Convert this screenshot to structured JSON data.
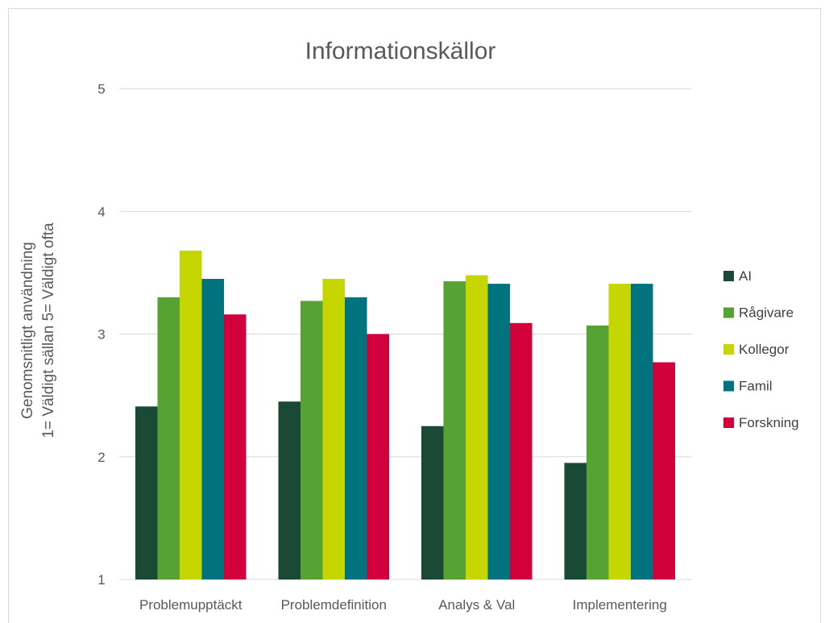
{
  "chart_data": {
    "type": "bar",
    "title": "Informationskällor",
    "ylabel_lines": [
      "Genomsnitligt användning",
      "1= Väldigt sällan 5= Väldigt ofta"
    ],
    "xlabel": "",
    "ylim": [
      1,
      5
    ],
    "yticks": [
      1,
      2,
      3,
      4,
      5
    ],
    "grid": true,
    "legend_position": "right",
    "categories": [
      "Problemupptäckt",
      "Problemdefinition",
      "Analys & Val",
      "Implementering"
    ],
    "series": [
      {
        "name": "AI",
        "color": "#1a4a35",
        "values": [
          2.41,
          2.45,
          2.25,
          1.95
        ]
      },
      {
        "name": "Rågivare",
        "color": "#56a232",
        "values": [
          3.3,
          3.27,
          3.43,
          3.07
        ]
      },
      {
        "name": "Kollegor",
        "color": "#c5d600",
        "values": [
          3.68,
          3.45,
          3.48,
          3.41
        ]
      },
      {
        "name": "Famil",
        "color": "#00737e",
        "values": [
          3.45,
          3.3,
          3.41,
          3.41
        ]
      },
      {
        "name": "Forskning",
        "color": "#d1003a",
        "values": [
          3.16,
          3.0,
          3.09,
          2.77
        ]
      }
    ]
  }
}
